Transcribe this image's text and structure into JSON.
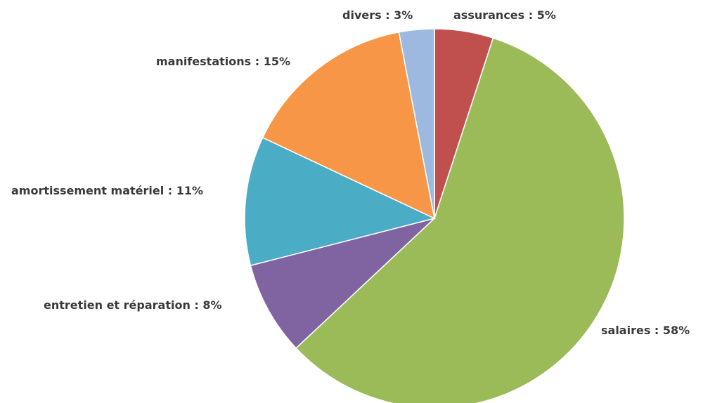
{
  "chart_data": {
    "type": "pie",
    "title": "",
    "slices": [
      {
        "label": "assurances : 5%",
        "name": "assurances",
        "value": 5,
        "color": "#c0504d"
      },
      {
        "label": "salaires : 58%",
        "name": "salaires",
        "value": 58,
        "color": "#9bbb59"
      },
      {
        "label": "entretien et réparation : 8%",
        "name": "entretien et réparation",
        "value": 8,
        "color": "#8064a2"
      },
      {
        "label": "amortissement matériel : 11%",
        "name": "amortissement matériel",
        "value": 11,
        "color": "#4bacc6"
      },
      {
        "label": "manifestations : 15%",
        "name": "manifestations",
        "value": 15,
        "color": "#f79646"
      },
      {
        "label": "divers : 3%",
        "name": "divers",
        "value": 3,
        "color": "#9db9e0"
      }
    ],
    "start_angle": "12 o'clock",
    "direction": "clockwise",
    "legend": "none",
    "data_labels": "outside"
  }
}
